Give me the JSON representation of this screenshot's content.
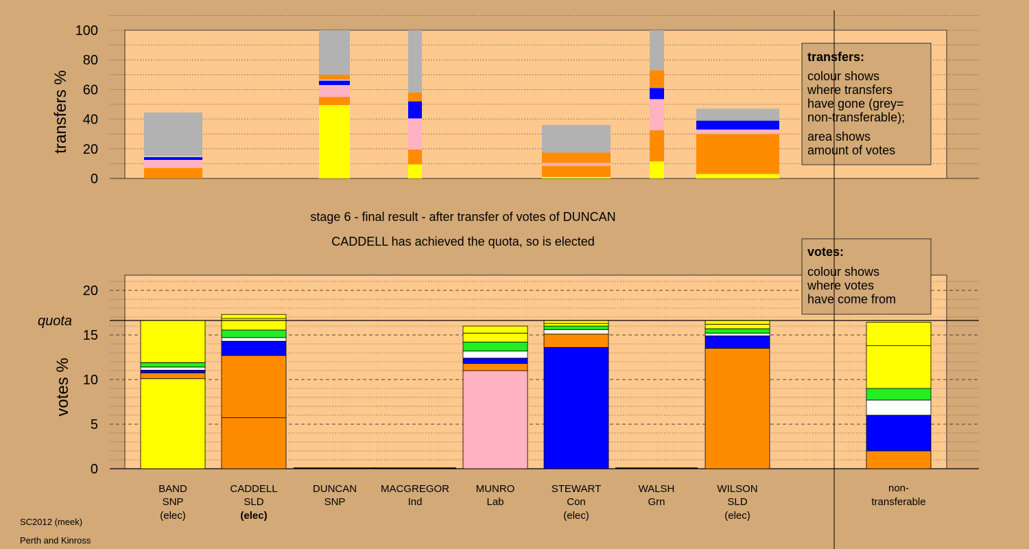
{
  "colors": {
    "page_bg": "#d2a977",
    "plot_bg": "#fec98e",
    "yellow": "#ffff00",
    "orange": "#ff8c00",
    "pink": "#ffb2c2",
    "blue": "#0000ff",
    "white": "#ffffff",
    "green": "#22ee22",
    "grey": "#b2b2b2"
  },
  "chart_data": [
    {
      "type": "bar",
      "stacked": true,
      "ylabel": "transfers %",
      "ylim": [
        0,
        100
      ],
      "yticks": [
        0,
        20,
        40,
        60,
        80,
        100
      ],
      "grid": "dotted",
      "categories": [
        "BAND",
        "DUNCAN",
        "MACGREGOR",
        "STEWART",
        "WALSH",
        "WILSON"
      ],
      "bars": [
        {
          "category": "BAND",
          "segments": [
            {
              "color": "orange",
              "value": 7
            },
            {
              "color": "pink",
              "value": 5.5
            },
            {
              "color": "blue",
              "value": 2
            },
            {
              "color": "white",
              "value": 0.5
            },
            {
              "color": "grey",
              "value": 29.5
            }
          ]
        },
        {
          "category": "DUNCAN",
          "segments": [
            {
              "color": "yellow",
              "value": 49.5
            },
            {
              "color": "orange",
              "value": 5.5
            },
            {
              "color": "pink",
              "value": 8
            },
            {
              "color": "blue",
              "value": 3
            },
            {
              "color": "white",
              "value": 0.5
            },
            {
              "color": "orange",
              "value": 3.5
            },
            {
              "color": "grey",
              "value": 30
            }
          ]
        },
        {
          "category": "MACGREGOR",
          "segments": [
            {
              "color": "yellow",
              "value": 9.5
            },
            {
              "color": "orange",
              "value": 10
            },
            {
              "color": "pink",
              "value": 21
            },
            {
              "color": "blue",
              "value": 11.5
            },
            {
              "color": "orange",
              "value": 6
            },
            {
              "color": "grey",
              "value": 42
            }
          ]
        },
        {
          "category": "STEWART",
          "segments": [
            {
              "color": "yellow",
              "value": 1
            },
            {
              "color": "orange",
              "value": 7.5
            },
            {
              "color": "pink",
              "value": 2
            },
            {
              "color": "orange",
              "value": 7
            },
            {
              "color": "grey",
              "value": 18.5
            }
          ]
        },
        {
          "category": "WALSH",
          "segments": [
            {
              "color": "yellow",
              "value": 11.5
            },
            {
              "color": "orange",
              "value": 21
            },
            {
              "color": "pink",
              "value": 21
            },
            {
              "color": "blue",
              "value": 7.5
            },
            {
              "color": "orange",
              "value": 12
            },
            {
              "color": "grey",
              "value": 27
            }
          ]
        },
        {
          "category": "WILSON",
          "segments": [
            {
              "color": "yellow",
              "value": 3
            },
            {
              "color": "orange",
              "value": 27
            },
            {
              "color": "pink",
              "value": 3
            },
            {
              "color": "blue",
              "value": 6
            },
            {
              "color": "grey",
              "value": 8
            }
          ]
        }
      ],
      "legend": {
        "placement": "top-right",
        "title": "transfers:",
        "lines": [
          "colour shows",
          "where transfers",
          "have gone (grey=",
          "non-transferable);",
          "",
          "area shows",
          "amount of votes"
        ]
      }
    },
    {
      "type": "bar",
      "stacked": true,
      "ylabel": "votes %",
      "ylim": [
        0,
        21.7
      ],
      "yticks": [
        0,
        5,
        10,
        15,
        20
      ],
      "grid": "dashed",
      "quota": 16.62,
      "quota_label": "quota",
      "categories": [
        "BAND",
        "CADDELL",
        "DUNCAN",
        "MACGREGOR",
        "MUNRO",
        "STEWART",
        "WALSH",
        "WILSON",
        "non-transferable"
      ],
      "bars": [
        {
          "category": "BAND",
          "segments": [
            {
              "color": "yellow",
              "value": 10.1
            },
            {
              "color": "orange",
              "value": 0.65
            },
            {
              "color": "blue",
              "value": 0.3
            },
            {
              "color": "white",
              "value": 0.35
            },
            {
              "color": "green",
              "value": 0.5
            },
            {
              "color": "yellow",
              "value": 4.72
            }
          ]
        },
        {
          "category": "CADDELL",
          "segments": [
            {
              "color": "orange",
              "value": 5.72
            },
            {
              "color": "orange",
              "value": 6.98
            },
            {
              "color": "blue",
              "value": 1.6
            },
            {
              "color": "white",
              "value": 0.4
            },
            {
              "color": "green",
              "value": 0.85
            },
            {
              "color": "yellow",
              "value": 1.3
            },
            {
              "color": "yellow",
              "value": 0.45
            }
          ]
        },
        {
          "category": "DUNCAN",
          "segments": []
        },
        {
          "category": "MACGREGOR",
          "segments": []
        },
        {
          "category": "MUNRO",
          "segments": [
            {
              "color": "pink",
              "value": 11
            },
            {
              "color": "orange",
              "value": 0.8
            },
            {
              "color": "blue",
              "value": 0.6
            },
            {
              "color": "white",
              "value": 0.8
            },
            {
              "color": "green",
              "value": 1
            },
            {
              "color": "yellow",
              "value": 1
            },
            {
              "color": "yellow",
              "value": 0.8
            }
          ]
        },
        {
          "category": "STEWART",
          "segments": [
            {
              "color": "blue",
              "value": 13.6
            },
            {
              "color": "orange",
              "value": 1.5
            },
            {
              "color": "white",
              "value": 0.5
            },
            {
              "color": "green",
              "value": 0.4
            },
            {
              "color": "yellow",
              "value": 0.3
            },
            {
              "color": "yellow",
              "value": 0.32
            }
          ]
        },
        {
          "category": "WALSH",
          "segments": []
        },
        {
          "category": "WILSON",
          "segments": [
            {
              "color": "orange",
              "value": 13.5
            },
            {
              "color": "blue",
              "value": 1.4
            },
            {
              "color": "white",
              "value": 0.3
            },
            {
              "color": "green",
              "value": 0.5
            },
            {
              "color": "yellow",
              "value": 0.5
            },
            {
              "color": "yellow",
              "value": 0.42
            }
          ]
        },
        {
          "category": "non-transferable",
          "segments": [
            {
              "color": "orange",
              "value": 2
            },
            {
              "color": "blue",
              "value": 4
            },
            {
              "color": "white",
              "value": 1.7
            },
            {
              "color": "green",
              "value": 1.3
            },
            {
              "color": "yellow",
              "value": 4.8
            },
            {
              "color": "yellow",
              "value": 2.62
            }
          ]
        }
      ],
      "legend": {
        "placement": "top-right",
        "title": "votes:",
        "lines": [
          "colour shows",
          "where votes",
          "have come from"
        ]
      }
    }
  ],
  "candidates": [
    {
      "name": "BAND",
      "party": "SNP",
      "status": "(elec)",
      "status_bold": false
    },
    {
      "name": "CADDELL",
      "party": "SLD",
      "status": "(elec)",
      "status_bold": true
    },
    {
      "name": "DUNCAN",
      "party": "SNP",
      "status": "",
      "status_bold": false
    },
    {
      "name": "MACGREGOR",
      "party": "Ind",
      "status": "",
      "status_bold": false
    },
    {
      "name": "MUNRO",
      "party": "Lab",
      "status": "",
      "status_bold": false
    },
    {
      "name": "STEWART",
      "party": "Con",
      "status": "(elec)",
      "status_bold": false
    },
    {
      "name": "WALSH",
      "party": "Grn",
      "status": "",
      "status_bold": false
    },
    {
      "name": "WILSON",
      "party": "SLD",
      "status": "(elec)",
      "status_bold": false
    }
  ],
  "nontransferable_label": [
    "non-",
    "transferable"
  ],
  "stage_line": "stage 6 - final result - after transfer of votes of DUNCAN",
  "elected_line": "CADDELL has achieved the quota, so is elected",
  "footer": {
    "source": "SC2012 (meek)",
    "area": "Perth and Kinross"
  }
}
